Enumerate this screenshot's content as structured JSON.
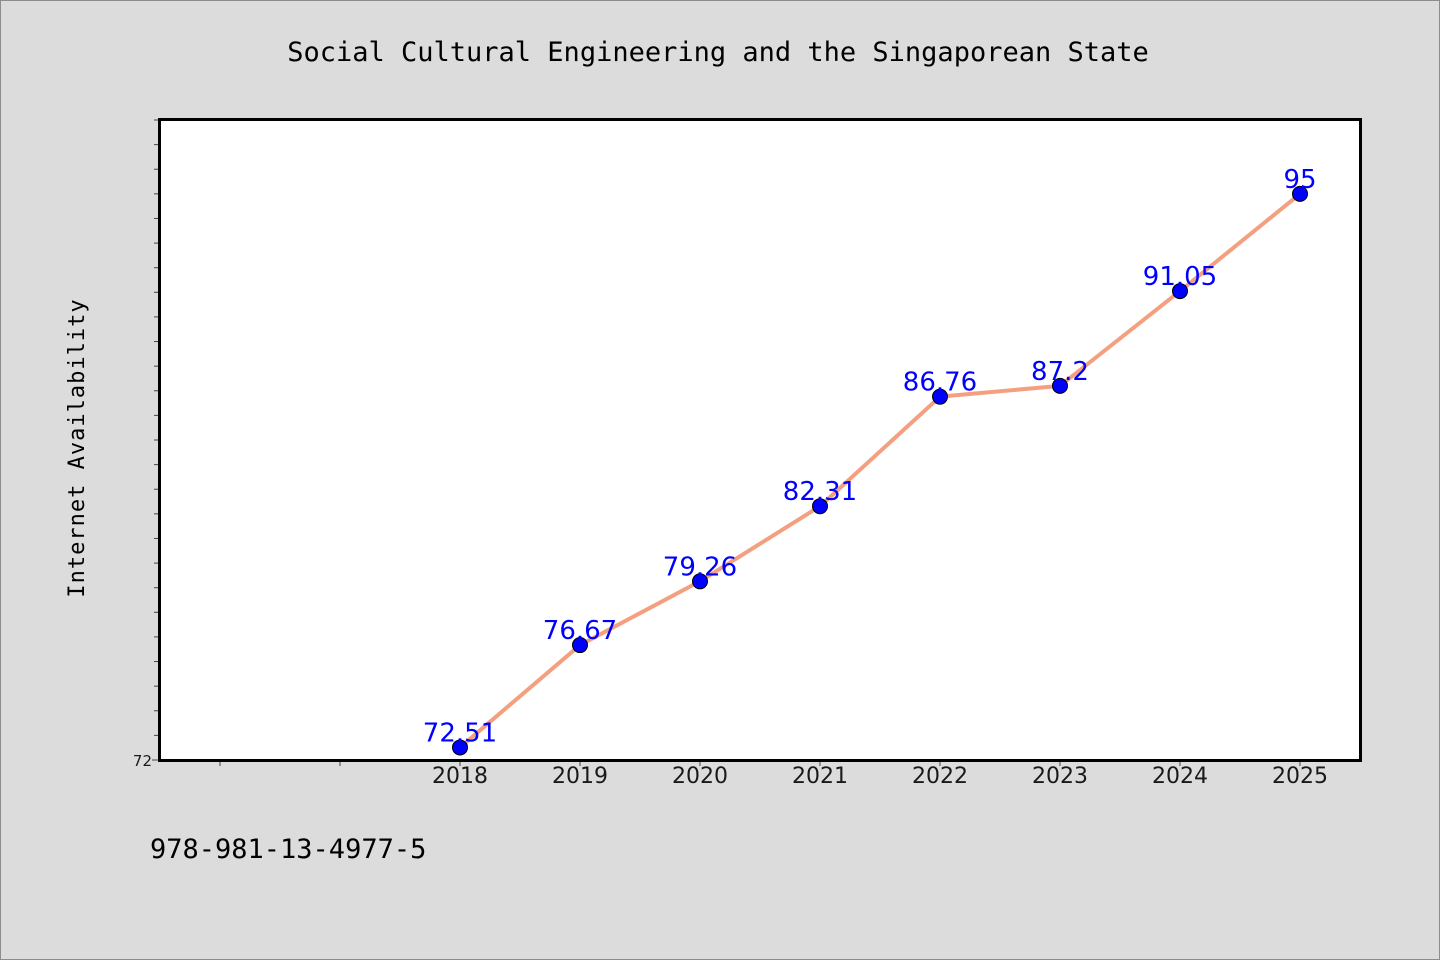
{
  "chart_data": {
    "type": "line",
    "title": "Social Cultural Engineering and the Singaporean State",
    "xlabel": "",
    "ylabel": "Internet Availability",
    "categories": [
      "2018",
      "2019",
      "2020",
      "2021",
      "2022",
      "2023",
      "2024",
      "2025"
    ],
    "series": [
      {
        "values": [
          72.51,
          76.67,
          79.26,
          82.31,
          86.76,
          87.2,
          91.05,
          95
        ]
      }
    ],
    "data_labels": [
      "72.51",
      "76.67",
      "79.26",
      "82.31",
      "86.76",
      "87.2",
      "91.05",
      "95"
    ],
    "y_tick_labels": [
      "72"
    ],
    "ylim": [
      72,
      98
    ],
    "grid": false,
    "line_color": "#f4a080",
    "marker_color": "#0000ff",
    "label_color": "#0000ff"
  },
  "footer": {
    "isbn": "978-981-13-4977-5"
  }
}
